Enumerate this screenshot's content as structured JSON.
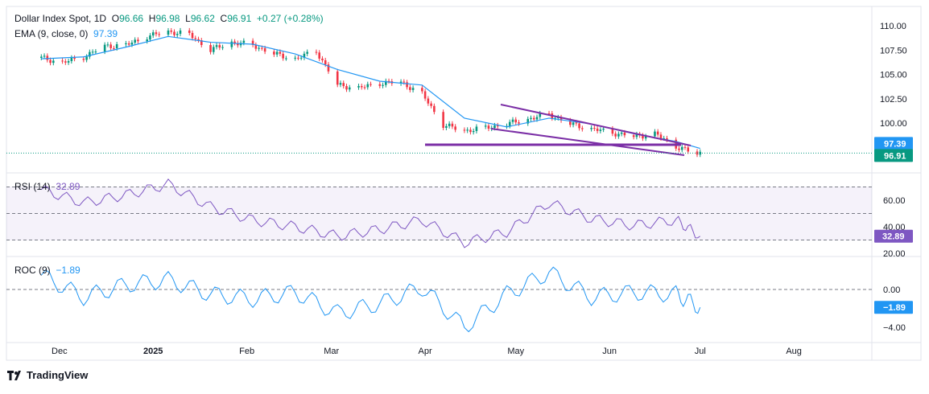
{
  "header": {
    "symbol": "Dollar Index Spot, 1D",
    "open_label": "O",
    "open": "96.66",
    "high_label": "H",
    "high": "96.98",
    "low_label": "L",
    "low": "96.62",
    "close_label": "C",
    "close": "96.91",
    "change": "+0.27 (+0.28%)"
  },
  "ema": {
    "label": "EMA (9, close, 0)",
    "value": "97.39"
  },
  "rsi": {
    "label": "RSI (14)",
    "value": "32.89"
  },
  "roc": {
    "label": "ROC (9)",
    "value": "-1.89",
    "badge": "−1.89",
    "label_value": "−1.89"
  },
  "footer": {
    "brand": "TradingView",
    "logo_icon": "tradingview-logo-icon"
  },
  "colors": {
    "up": "#089981",
    "down": "#f23645",
    "ema": "#2196f3",
    "rsi": "#7e57c2",
    "roc": "#2196f3",
    "trend": "#7b2fa6",
    "badge_green": "#089981",
    "badge_rsi": "#7e57c2"
  },
  "chart_data": [
    {
      "type": "line",
      "panel": "price",
      "series": [
        {
          "name": "Dollar Index Spot",
          "x": [
            "2024-11-25",
            "2024-12-02",
            "2024-12-09",
            "2024-12-16",
            "2024-12-23",
            "2024-12-30",
            "2025-01-06",
            "2025-01-13",
            "2025-01-20",
            "2025-01-27",
            "2025-02-03",
            "2025-02-10",
            "2025-02-17",
            "2025-02-24",
            "2025-03-03",
            "2025-03-10",
            "2025-03-17",
            "2025-03-24",
            "2025-03-31",
            "2025-04-07",
            "2025-04-14",
            "2025-04-21",
            "2025-04-28",
            "2025-05-05",
            "2025-05-12",
            "2025-05-19",
            "2025-05-26",
            "2025-06-02",
            "2025-06-09",
            "2025-06-16",
            "2025-06-23",
            "2025-06-30",
            "2025-07-01"
          ],
          "values": [
            106.7,
            106.2,
            106.8,
            107.9,
            108.0,
            108.9,
            109.4,
            109.1,
            107.5,
            108.3,
            108.0,
            107.1,
            106.6,
            107.4,
            103.9,
            103.6,
            104.1,
            104.2,
            103.0,
            99.8,
            99.2,
            99.5,
            99.9,
            100.4,
            100.9,
            99.9,
            99.4,
            99.0,
            98.6,
            98.9,
            97.6,
            96.8,
            96.91
          ]
        },
        {
          "name": "EMA (9, close, 0)",
          "x": [
            "2024-11-25",
            "2024-12-09",
            "2024-12-23",
            "2025-01-06",
            "2025-01-20",
            "2025-02-03",
            "2025-02-17",
            "2025-03-03",
            "2025-03-17",
            "2025-03-31",
            "2025-04-14",
            "2025-04-28",
            "2025-05-12",
            "2025-05-26",
            "2025-06-09",
            "2025-06-23",
            "2025-07-01"
          ],
          "values": [
            106.6,
            106.8,
            107.8,
            108.9,
            108.3,
            108.1,
            107.1,
            105.5,
            104.3,
            103.9,
            100.5,
            99.6,
            100.5,
            99.9,
            98.9,
            98.1,
            97.39
          ]
        }
      ],
      "yticks": [
        110.0,
        107.5,
        105.0,
        102.5,
        100.0
      ],
      "xticks": [
        "Dec",
        "2025",
        "Feb",
        "Mar",
        "Apr",
        "May",
        "Jun",
        "Jul",
        "Aug"
      ],
      "badges": [
        "97.39",
        "96.91"
      ]
    },
    {
      "type": "line",
      "panel": "rsi",
      "series": [
        {
          "name": "RSI (14)",
          "x": [
            "2024-11-25",
            "2024-12-09",
            "2024-12-23",
            "2025-01-06",
            "2025-01-20",
            "2025-02-03",
            "2025-02-17",
            "2025-03-03",
            "2025-03-17",
            "2025-03-31",
            "2025-04-14",
            "2025-04-28",
            "2025-05-12",
            "2025-05-26",
            "2025-06-09",
            "2025-06-23",
            "2025-07-01"
          ],
          "values": [
            68,
            58,
            64,
            72,
            55,
            45,
            40,
            33,
            38,
            45,
            28,
            36,
            58,
            46,
            41,
            45,
            32.89
          ]
        }
      ],
      "yticks": [
        60.0,
        40.0,
        20.0
      ],
      "levels": [
        70,
        50,
        30
      ]
    },
    {
      "type": "line",
      "panel": "roc",
      "series": [
        {
          "name": "ROC (9)",
          "x": [
            "2024-11-25",
            "2024-12-09",
            "2024-12-23",
            "2025-01-06",
            "2025-01-20",
            "2025-02-03",
            "2025-02-17",
            "2025-03-03",
            "2025-03-17",
            "2025-03-31",
            "2025-04-14",
            "2025-04-28",
            "2025-05-12",
            "2025-05-26",
            "2025-06-09",
            "2025-06-23",
            "2025-07-01"
          ],
          "values": [
            1.5,
            -0.8,
            0.5,
            1.0,
            -0.5,
            -1.0,
            -0.3,
            -2.5,
            -1.5,
            0.2,
            -4.0,
            -0.5,
            1.8,
            -0.8,
            -0.3,
            -0.5,
            -1.89
          ]
        }
      ],
      "yticks": [
        0.0,
        -4.0
      ],
      "levels": [
        0
      ]
    }
  ]
}
